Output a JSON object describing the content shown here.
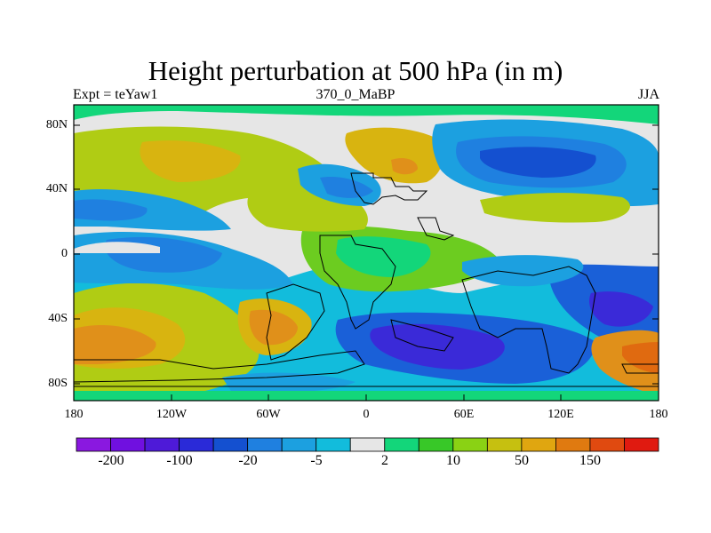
{
  "title": "Height perturbation at 500 hPa (in m)",
  "subtitle_left": "Expt = teYaw1",
  "subtitle_center": "370_0_MaBP",
  "subtitle_right": "JJA",
  "y_ticks": [
    "80N",
    "40N",
    "0",
    "40S",
    "80S"
  ],
  "x_ticks": [
    "180",
    "120W",
    "60W",
    "0",
    "60E",
    "120E",
    "180"
  ],
  "colorbar": {
    "colors": [
      "#8a18e0",
      "#7010e0",
      "#4e1ad8",
      "#2a2ad8",
      "#1450d0",
      "#1f80e0",
      "#1ca0e0",
      "#12bcdc",
      "#e6e6e6",
      "#13d67a",
      "#38c828",
      "#8ad214",
      "#c6c010",
      "#e0a610",
      "#e07a10",
      "#e04a10",
      "#e01a10"
    ],
    "labels": [
      "-200",
      "-100",
      "-20",
      "-5",
      "2",
      "10",
      "50",
      "150"
    ]
  },
  "map_data": {
    "lon_range": [
      -180,
      180
    ],
    "lat_range": [
      -90,
      90
    ],
    "colors": {
      "neutral": "#e6e6e6",
      "strong_neg": "#3a2ad8",
      "neg": "#1a60d8",
      "weak_neg": "#1ca0e0",
      "weak_neg2": "#12bcdc",
      "weak_pos": "#13d67a",
      "pos": "#6ccc20",
      "pos2": "#b0cc14",
      "pos3": "#d8b410",
      "strong_pos": "#e0901a",
      "max_pos": "#e06a10"
    }
  }
}
